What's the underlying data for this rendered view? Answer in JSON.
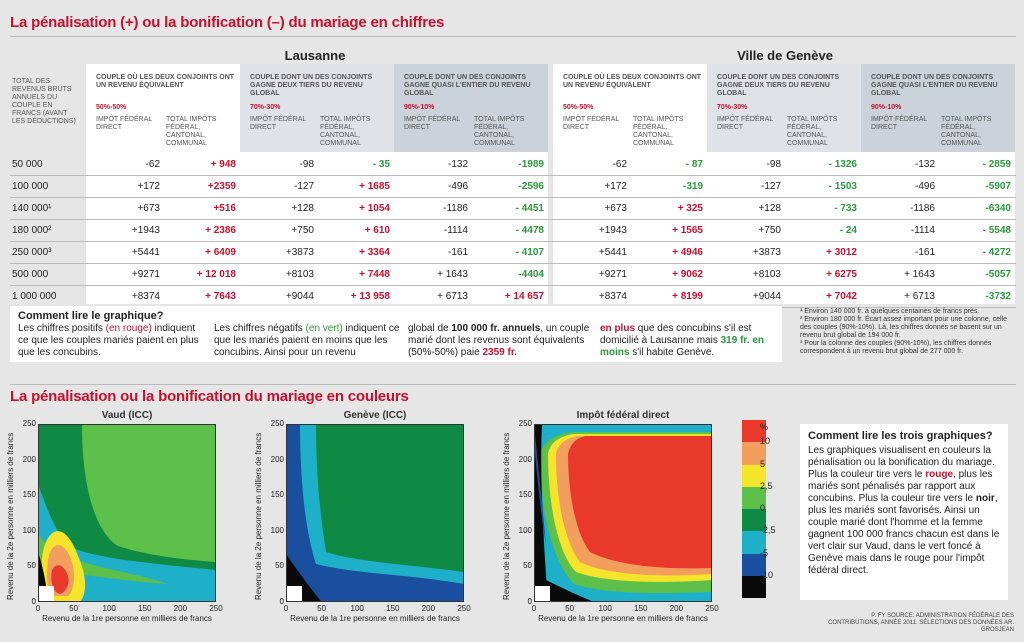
{
  "title1": "La pénalisation (+) ou la bonification (–) du mariage en chiffres",
  "title2": "La pénalisation ou la bonification du mariage en couleurs",
  "cities": [
    "Lausanne",
    "Ville de Genève"
  ],
  "revenue_header": "TOTAL DES REVENUS BRUTS ANNUELS DU COUPLE EN FRANCS (avant les déductions)",
  "groups": [
    {
      "label": "COUPLE OÙ LES DEUX CONJOINTS ONT UN REVENU ÉQUIVALENT",
      "pct": "50%-50%"
    },
    {
      "label": "COUPLE DONT UN DES CONJOINTS GAGNE DEUX TIERS DU REVENU GLOBAL",
      "pct": "70%-30%"
    },
    {
      "label": "COUPLE DONT UN DES CONJOINTS GAGNE QUASI L'ENTIER DU REVENU GLOBAL",
      "pct": "90%-10%"
    }
  ],
  "sub_ifd": "IMPÔT FÉDÉRAL DIRECT",
  "sub_total": "TOTAL IMPÔTS FÉDÉRAL, CANTONAL, COMMUNAL",
  "rows": [
    {
      "rev": "50 000",
      "l": [
        "-62",
        "+ 948",
        "-98",
        "- 35",
        "-132",
        "-1989"
      ],
      "g": [
        "-62",
        "- 87",
        "-98",
        "- 1326",
        "-132",
        "- 2859"
      ]
    },
    {
      "rev": "100 000",
      "l": [
        "+172",
        "+2359",
        "-127",
        "+ 1685",
        "-496",
        "-2596"
      ],
      "g": [
        "+172",
        "-319",
        "-127",
        "- 1503",
        "-496",
        "-5907"
      ]
    },
    {
      "rev": "140 000¹",
      "l": [
        "+673",
        "+516",
        "+128",
        "+ 1054",
        "-1186",
        "- 4451"
      ],
      "g": [
        "+673",
        "+ 325",
        "+128",
        "- 733",
        "-1186",
        "-6340"
      ]
    },
    {
      "rev": "180 000²",
      "l": [
        "+1943",
        "+ 2386",
        "+750",
        "+ 610",
        "-1114",
        "- 4478"
      ],
      "g": [
        "+1943",
        "+ 1565",
        "+750",
        "- 24",
        "-1114",
        "- 5548"
      ]
    },
    {
      "rev": "250 000³",
      "l": [
        "+5441",
        "+ 6409",
        "+3873",
        "+ 3364",
        "-161",
        "- 4107"
      ],
      "g": [
        "+5441",
        "+ 4946",
        "+3873",
        "+ 3012",
        "-161",
        "- 4272"
      ]
    },
    {
      "rev": "500 000",
      "l": [
        "+9271",
        "+ 12 018",
        "+8103",
        "+ 7448",
        "+ 1643",
        "-4404"
      ],
      "g": [
        "+9271",
        "+ 9062",
        "+8103",
        "+ 6275",
        "+ 1643",
        "-5057"
      ]
    },
    {
      "rev": "1 000 000",
      "l": [
        "+8374",
        "+ 7643",
        "+9044",
        "+ 13 958",
        "+ 6713",
        "+ 14 657"
      ],
      "g": [
        "+8374",
        "+ 8199",
        "+9044",
        "+ 7042",
        "+ 6713",
        "-3732"
      ]
    }
  ],
  "how_numbers": {
    "title": "Comment lire le graphique?",
    "p1a": "Les chiffres positifs ",
    "p1b": "(en rouge)",
    "p1c": " indiquent ce que les couples mariés paient en plus que les concubins.",
    "p2a": "Les chiffres négatifs ",
    "p2b": "(en vert)",
    "p2c": " indiquent ce que les mariés paient en moins que les concubins. Ainsi pour un revenu",
    "p3a": "global de ",
    "p3b": "100 000 fr. annuels",
    "p3c": ", un couple marié dont les revenus sont équivalents (50%-50%) paie ",
    "p3d": "2359 fr.",
    "p4a": "en plus",
    "p4b": " que des concubins s'il est domicilié à Lausanne mais ",
    "p4c": "319 fr. en moins",
    "p4d": " s'il habite Genève."
  },
  "footnotes": [
    "¹ Environ 140 000 fr. à quelques centaines de francs près.",
    "² Environ 180 000 fr. Écart assez important pour une colonne, celle des couples (90%-10%). Là, les chiffres donnés se basent sur un revenu brut global de 194 000 fr.",
    "³ Pour la colonne des couples (90%-10%), les chiffres donnés correspondent à un revenu brut global de 277 000 fr."
  ],
  "panels": [
    "Vaud (ICC)",
    "Genève (ICC)",
    "Impôt fédéral direct"
  ],
  "ylabel": "Revenu de la 2e personne en milliers de francs",
  "xlabel": "Revenu de la 1re personne en milliers de francs",
  "ticks": [
    "0",
    "50",
    "100",
    "150",
    "200",
    "250"
  ],
  "legend": {
    "unit": "%",
    "labels": [
      "10",
      "5",
      "2,5",
      "0",
      "-2,5",
      "-5",
      "-10"
    ],
    "colors": [
      "#e8392b",
      "#f29e5c",
      "#f5e52a",
      "#5cc04a",
      "#0f8a44",
      "#1fb0c9",
      "#1a4fa0",
      "#0a0a0a"
    ]
  },
  "how_colors": {
    "title": "Comment lire les trois graphiques?",
    "a": "Les graphiques visualisent en couleurs la pénalisation ou la bonification du mariage. Plus la couleur tire vers le ",
    "b": "rouge",
    "c": ", plus les mariés sont pénalisés par rapport aux concubins. Plus la couleur tire vers le ",
    "d": "noir",
    "e": ", plus les mariés sont favorisés. Ainsi un couple marié dont l'homme et la femme gagnent 100 000 francs chacun est dans le vert clair sur Vaud, dans le vert foncé à Genève mais dans le rouge pour l'impôt fédéral direct."
  },
  "source": "P. FY SOURCE: ADMINISTRATION FÉDÉRALE DES CONTRIBUTIONS, ANNÉE 2011. SÉLECTIONS DES DONNÉES AR. GROSJEAN",
  "chart_data": [
    {
      "type": "heatmap",
      "title": "Vaud (ICC)",
      "xlabel": "Revenu de la 1re personne en milliers de francs",
      "ylabel": "Revenu de la 2e personne en milliers de francs",
      "xlim": [
        0,
        250
      ],
      "ylim": [
        0,
        250
      ]
    },
    {
      "type": "heatmap",
      "title": "Genève (ICC)",
      "xlabel": "Revenu de la 1re personne en milliers de francs",
      "ylabel": "Revenu de la 2e personne en milliers de francs",
      "xlim": [
        0,
        250
      ],
      "ylim": [
        0,
        250
      ]
    },
    {
      "type": "heatmap",
      "title": "Impôt fédéral direct",
      "xlabel": "Revenu de la 1re personne en milliers de francs",
      "ylabel": "Revenu de la 2e personne en milliers de francs",
      "xlim": [
        0,
        250
      ],
      "ylim": [
        0,
        250
      ]
    }
  ]
}
